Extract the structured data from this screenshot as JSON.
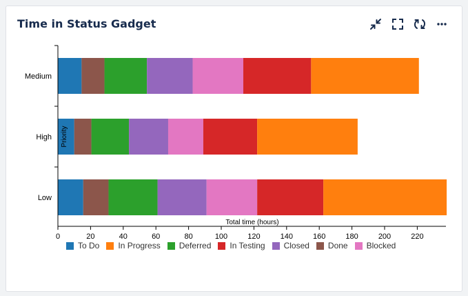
{
  "gadget": {
    "title": "Time in Status Gadget",
    "toolbar": [
      {
        "name": "collapse-icon",
        "label": "Collapse"
      },
      {
        "name": "fullscreen-icon",
        "label": "Full screen"
      },
      {
        "name": "refresh-icon",
        "label": "Refresh"
      },
      {
        "name": "more-icon",
        "label": "More"
      }
    ]
  },
  "chart_data": {
    "type": "bar",
    "orientation": "horizontal",
    "stacked": true,
    "categories": [
      "Medium",
      "High",
      "Low"
    ],
    "series": [
      {
        "name": "To Do",
        "color": "#1f77b4",
        "values": [
          14.5,
          10,
          15.5
        ]
      },
      {
        "name": "Done",
        "color": "#8c564b",
        "values": [
          14,
          10.5,
          15.5
        ]
      },
      {
        "name": "Deferred",
        "color": "#2ca02c",
        "values": [
          26,
          23,
          30
        ]
      },
      {
        "name": "Closed",
        "color": "#9467bd",
        "values": [
          28,
          24,
          30
        ]
      },
      {
        "name": "Blocked",
        "color": "#e377c2",
        "values": [
          31,
          21.5,
          31
        ]
      },
      {
        "name": "In Testing",
        "color": "#d62728",
        "values": [
          41.5,
          33,
          40.5
        ]
      },
      {
        "name": "In Progress",
        "color": "#ff7f0e",
        "values": [
          66,
          61.5,
          75.5
        ]
      }
    ],
    "legend_order": [
      "To Do",
      "In Progress",
      "Deferred",
      "In Testing",
      "Closed",
      "Done",
      "Blocked"
    ],
    "xlabel": "Total time (hours)",
    "ylabel": "Priority",
    "xlim": [
      0,
      238
    ],
    "xticks": [
      0,
      20,
      40,
      60,
      80,
      100,
      120,
      140,
      160,
      180,
      200,
      220
    ],
    "legend_position": "bottom",
    "grid": false
  }
}
